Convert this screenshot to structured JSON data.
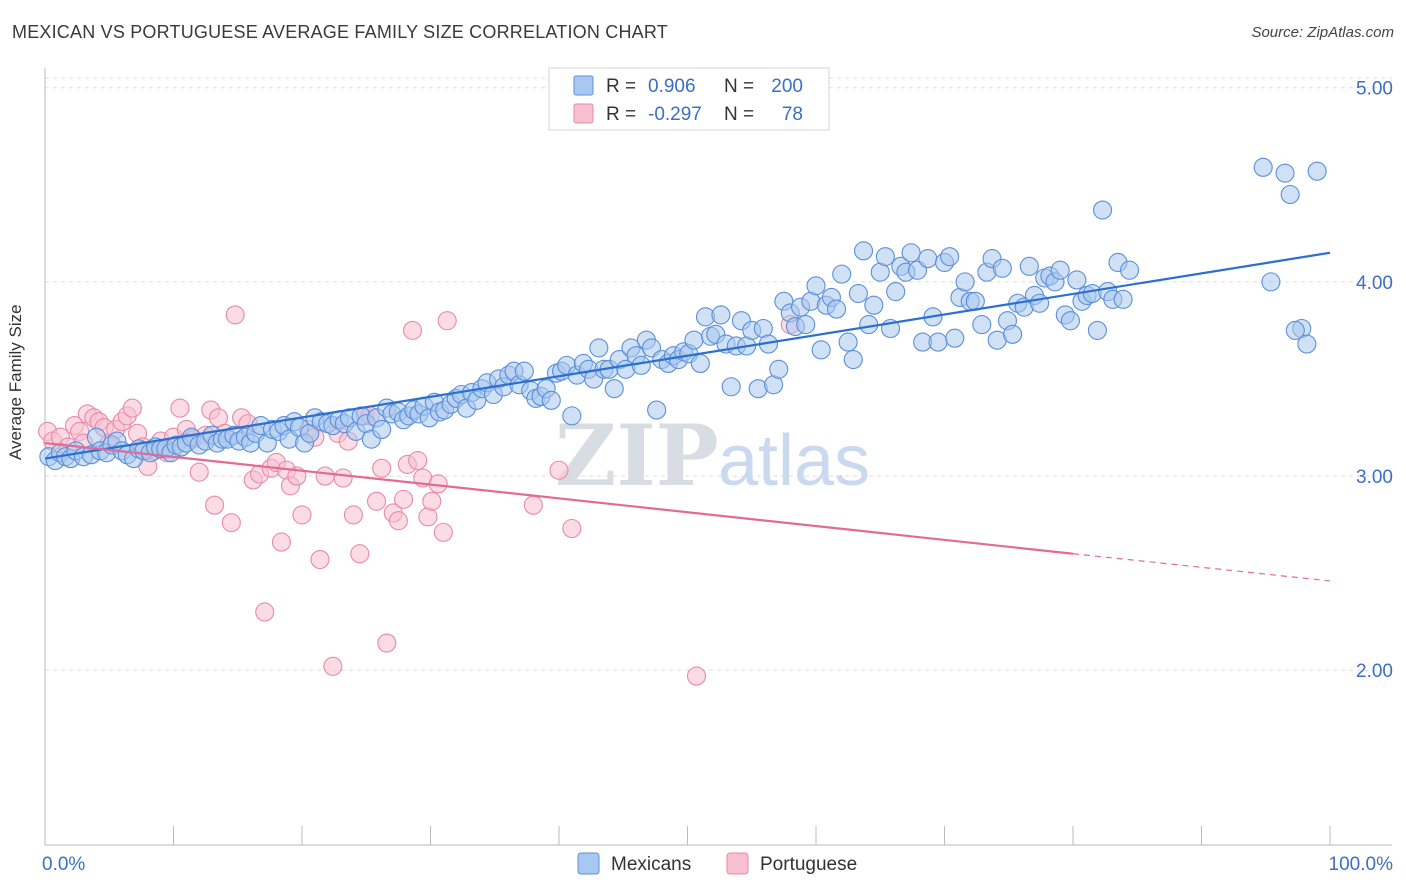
{
  "title": "MEXICAN VS PORTUGUESE AVERAGE FAMILY SIZE CORRELATION CHART",
  "source": "Source: ZipAtlas.com",
  "watermark": {
    "zip": "ZIP",
    "atlas": "atlas"
  },
  "chart_data": {
    "type": "scatter",
    "title": "MEXICAN VS PORTUGUESE AVERAGE FAMILY SIZE CORRELATION CHART",
    "xlabel": "",
    "ylabel": "Average Family Size",
    "xlim": [
      0,
      100
    ],
    "ylim": [
      1.1,
      5.05
    ],
    "x_tick_labels": {
      "left": "0.0%",
      "right": "100.0%"
    },
    "y_ticks": [
      2.0,
      3.0,
      4.0,
      5.0
    ],
    "y_tick_labels": [
      "2.00",
      "3.00",
      "4.00",
      "5.00"
    ],
    "legend_top": [
      {
        "series": "Mexicans",
        "r_label": "R =",
        "r_value": "0.906",
        "n_label": "N =",
        "n_value": "200"
      },
      {
        "series": "Portuguese",
        "r_label": "R =",
        "r_value": "-0.297",
        "n_label": "N =",
        "n_value": "78"
      }
    ],
    "series": [
      {
        "name": "Mexicans",
        "color": "#5b8fd9",
        "fill": "#a9c8ef",
        "trend": {
          "x1": 0,
          "y1": 3.09,
          "x2": 100,
          "y2": 4.15,
          "color": "#2b6fd1"
        },
        "points": [
          [
            0.3,
            3.1
          ],
          [
            0.8,
            3.08
          ],
          [
            1.2,
            3.12
          ],
          [
            1.6,
            3.1
          ],
          [
            2.0,
            3.09
          ],
          [
            2.4,
            3.13
          ],
          [
            3.0,
            3.1
          ],
          [
            3.6,
            3.11
          ],
          [
            4.0,
            3.2
          ],
          [
            4.3,
            3.13
          ],
          [
            4.8,
            3.12
          ],
          [
            5.2,
            3.16
          ],
          [
            5.6,
            3.18
          ],
          [
            6.0,
            3.13
          ],
          [
            6.4,
            3.11
          ],
          [
            6.9,
            3.09
          ],
          [
            7.3,
            3.14
          ],
          [
            7.7,
            3.13
          ],
          [
            8.2,
            3.12
          ],
          [
            8.6,
            3.15
          ],
          [
            9.0,
            3.14
          ],
          [
            9.4,
            3.14
          ],
          [
            9.8,
            3.12
          ],
          [
            10.2,
            3.16
          ],
          [
            10.6,
            3.15
          ],
          [
            11.0,
            3.17
          ],
          [
            11.4,
            3.2
          ],
          [
            12.0,
            3.16
          ],
          [
            12.5,
            3.18
          ],
          [
            13.0,
            3.21
          ],
          [
            13.4,
            3.17
          ],
          [
            13.8,
            3.19
          ],
          [
            14.2,
            3.19
          ],
          [
            14.7,
            3.21
          ],
          [
            15.1,
            3.18
          ],
          [
            15.6,
            3.2
          ],
          [
            16.0,
            3.17
          ],
          [
            16.4,
            3.22
          ],
          [
            16.8,
            3.26
          ],
          [
            17.3,
            3.17
          ],
          [
            17.7,
            3.24
          ],
          [
            18.2,
            3.23
          ],
          [
            18.6,
            3.26
          ],
          [
            19.0,
            3.19
          ],
          [
            19.4,
            3.28
          ],
          [
            19.8,
            3.25
          ],
          [
            20.2,
            3.17
          ],
          [
            20.6,
            3.22
          ],
          [
            21.0,
            3.3
          ],
          [
            21.5,
            3.28
          ],
          [
            22.0,
            3.27
          ],
          [
            22.4,
            3.26
          ],
          [
            22.9,
            3.29
          ],
          [
            23.3,
            3.27
          ],
          [
            23.7,
            3.3
          ],
          [
            24.2,
            3.23
          ],
          [
            24.6,
            3.31
          ],
          [
            25.0,
            3.27
          ],
          [
            25.4,
            3.19
          ],
          [
            25.8,
            3.3
          ],
          [
            26.2,
            3.24
          ],
          [
            26.6,
            3.35
          ],
          [
            27.0,
            3.32
          ],
          [
            27.5,
            3.33
          ],
          [
            27.9,
            3.29
          ],
          [
            28.3,
            3.31
          ],
          [
            28.7,
            3.34
          ],
          [
            29.1,
            3.32
          ],
          [
            29.5,
            3.36
          ],
          [
            29.9,
            3.3
          ],
          [
            30.3,
            3.38
          ],
          [
            30.7,
            3.33
          ],
          [
            31.1,
            3.34
          ],
          [
            31.6,
            3.37
          ],
          [
            32.0,
            3.4
          ],
          [
            32.4,
            3.42
          ],
          [
            32.8,
            3.35
          ],
          [
            33.2,
            3.43
          ],
          [
            33.6,
            3.39
          ],
          [
            34.0,
            3.45
          ],
          [
            34.4,
            3.48
          ],
          [
            34.9,
            3.42
          ],
          [
            35.3,
            3.5
          ],
          [
            35.7,
            3.46
          ],
          [
            36.1,
            3.52
          ],
          [
            36.5,
            3.54
          ],
          [
            36.9,
            3.47
          ],
          [
            37.3,
            3.54
          ],
          [
            37.8,
            3.44
          ],
          [
            38.2,
            3.4
          ],
          [
            38.6,
            3.41
          ],
          [
            39.0,
            3.45
          ],
          [
            39.4,
            3.39
          ],
          [
            39.8,
            3.53
          ],
          [
            40.2,
            3.54
          ],
          [
            40.6,
            3.57
          ],
          [
            41.0,
            3.31
          ],
          [
            41.4,
            3.52
          ],
          [
            41.9,
            3.58
          ],
          [
            42.3,
            3.55
          ],
          [
            42.7,
            3.5
          ],
          [
            43.1,
            3.66
          ],
          [
            43.5,
            3.55
          ],
          [
            43.9,
            3.55
          ],
          [
            44.3,
            3.45
          ],
          [
            44.7,
            3.6
          ],
          [
            45.2,
            3.55
          ],
          [
            45.6,
            3.66
          ],
          [
            46.0,
            3.62
          ],
          [
            46.4,
            3.57
          ],
          [
            46.8,
            3.7
          ],
          [
            47.2,
            3.66
          ],
          [
            47.6,
            3.34
          ],
          [
            48.0,
            3.6
          ],
          [
            48.5,
            3.58
          ],
          [
            48.9,
            3.62
          ],
          [
            49.3,
            3.6
          ],
          [
            49.7,
            3.64
          ],
          [
            50.1,
            3.63
          ],
          [
            50.5,
            3.7
          ],
          [
            51.0,
            3.58
          ],
          [
            51.4,
            3.82
          ],
          [
            51.8,
            3.72
          ],
          [
            52.2,
            3.73
          ],
          [
            52.6,
            3.83
          ],
          [
            53.0,
            3.68
          ],
          [
            53.4,
            3.46
          ],
          [
            53.8,
            3.67
          ],
          [
            54.2,
            3.8
          ],
          [
            54.6,
            3.67
          ],
          [
            55.0,
            3.75
          ],
          [
            55.5,
            3.45
          ],
          [
            55.9,
            3.76
          ],
          [
            56.3,
            3.68
          ],
          [
            56.7,
            3.47
          ],
          [
            57.1,
            3.55
          ],
          [
            57.5,
            3.9
          ],
          [
            58.0,
            3.84
          ],
          [
            58.4,
            3.77
          ],
          [
            58.8,
            3.87
          ],
          [
            59.2,
            3.78
          ],
          [
            59.6,
            3.9
          ],
          [
            60.0,
            3.98
          ],
          [
            60.4,
            3.65
          ],
          [
            60.8,
            3.88
          ],
          [
            61.2,
            3.92
          ],
          [
            61.6,
            3.86
          ],
          [
            62.0,
            4.04
          ],
          [
            62.5,
            3.69
          ],
          [
            62.9,
            3.6
          ],
          [
            63.3,
            3.94
          ],
          [
            63.7,
            4.16
          ],
          [
            64.1,
            3.78
          ],
          [
            64.5,
            3.88
          ],
          [
            65.0,
            4.05
          ],
          [
            65.4,
            4.13
          ],
          [
            65.8,
            3.76
          ],
          [
            66.2,
            3.95
          ],
          [
            66.6,
            4.08
          ],
          [
            67.0,
            4.05
          ],
          [
            67.4,
            4.15
          ],
          [
            67.9,
            4.06
          ],
          [
            68.3,
            3.69
          ],
          [
            68.7,
            4.12
          ],
          [
            69.1,
            3.82
          ],
          [
            69.5,
            3.69
          ],
          [
            70.0,
            4.1
          ],
          [
            70.4,
            4.13
          ],
          [
            70.8,
            3.71
          ],
          [
            71.2,
            3.92
          ],
          [
            71.6,
            4.0
          ],
          [
            72.0,
            3.9
          ],
          [
            72.4,
            3.9
          ],
          [
            72.9,
            3.78
          ],
          [
            73.3,
            4.05
          ],
          [
            73.7,
            4.12
          ],
          [
            74.1,
            3.7
          ],
          [
            74.5,
            4.07
          ],
          [
            74.9,
            3.8
          ],
          [
            75.3,
            3.73
          ],
          [
            75.7,
            3.89
          ],
          [
            76.2,
            3.87
          ],
          [
            76.6,
            4.08
          ],
          [
            77.0,
            3.93
          ],
          [
            77.4,
            3.89
          ],
          [
            77.8,
            4.02
          ],
          [
            78.2,
            4.03
          ],
          [
            78.6,
            4.0
          ],
          [
            79.0,
            4.06
          ],
          [
            79.4,
            3.83
          ],
          [
            79.8,
            3.8
          ],
          [
            80.3,
            4.01
          ],
          [
            80.7,
            3.9
          ],
          [
            81.1,
            3.93
          ],
          [
            81.5,
            3.94
          ],
          [
            81.9,
            3.75
          ],
          [
            82.3,
            4.37
          ],
          [
            82.7,
            3.95
          ],
          [
            83.1,
            3.91
          ],
          [
            83.5,
            4.1
          ],
          [
            83.9,
            3.91
          ],
          [
            84.4,
            4.06
          ],
          [
            94.8,
            4.59
          ],
          [
            96.5,
            4.56
          ],
          [
            96.9,
            4.45
          ],
          [
            97.8,
            3.76
          ],
          [
            98.2,
            3.68
          ],
          [
            99.0,
            4.57
          ],
          [
            97.3,
            3.75
          ],
          [
            95.4,
            4.0
          ]
        ]
      },
      {
        "name": "Portuguese",
        "color": "#e88aa8",
        "fill": "#f7bfd0",
        "trend": {
          "x1": 0,
          "y1": 3.17,
          "x2": 80,
          "y2": 2.6,
          "color": "#e26a93",
          "dashed_to_x": 100,
          "dashed_to_y": 2.46
        },
        "points": [
          [
            0.2,
            3.23
          ],
          [
            0.6,
            3.18
          ],
          [
            1.2,
            3.2
          ],
          [
            1.8,
            3.15
          ],
          [
            2.3,
            3.26
          ],
          [
            2.7,
            3.23
          ],
          [
            3.0,
            3.17
          ],
          [
            3.3,
            3.32
          ],
          [
            3.8,
            3.3
          ],
          [
            4.2,
            3.28
          ],
          [
            4.6,
            3.25
          ],
          [
            5.0,
            3.17
          ],
          [
            5.5,
            3.24
          ],
          [
            6.0,
            3.28
          ],
          [
            6.4,
            3.31
          ],
          [
            6.8,
            3.35
          ],
          [
            7.2,
            3.22
          ],
          [
            7.6,
            3.15
          ],
          [
            8.0,
            3.05
          ],
          [
            8.5,
            3.13
          ],
          [
            9.0,
            3.18
          ],
          [
            9.5,
            3.12
          ],
          [
            10.0,
            3.2
          ],
          [
            10.5,
            3.35
          ],
          [
            11.0,
            3.24
          ],
          [
            11.5,
            3.19
          ],
          [
            12.0,
            3.02
          ],
          [
            12.5,
            3.21
          ],
          [
            12.9,
            3.34
          ],
          [
            13.2,
            2.85
          ],
          [
            13.5,
            3.3
          ],
          [
            14.0,
            3.22
          ],
          [
            14.5,
            2.76
          ],
          [
            14.8,
            3.83
          ],
          [
            15.3,
            3.3
          ],
          [
            15.8,
            3.27
          ],
          [
            16.2,
            2.98
          ],
          [
            16.7,
            3.01
          ],
          [
            17.1,
            2.3
          ],
          [
            17.6,
            3.04
          ],
          [
            18.0,
            3.07
          ],
          [
            18.4,
            2.66
          ],
          [
            18.8,
            3.03
          ],
          [
            19.1,
            2.95
          ],
          [
            19.6,
            3.0
          ],
          [
            20.0,
            2.8
          ],
          [
            20.5,
            3.24
          ],
          [
            21.0,
            3.2
          ],
          [
            21.4,
            2.57
          ],
          [
            21.8,
            3.0
          ],
          [
            22.4,
            2.02
          ],
          [
            22.8,
            3.22
          ],
          [
            23.2,
            2.99
          ],
          [
            23.6,
            3.18
          ],
          [
            24.0,
            2.8
          ],
          [
            24.5,
            2.6
          ],
          [
            24.9,
            3.31
          ],
          [
            25.3,
            3.31
          ],
          [
            25.8,
            2.87
          ],
          [
            26.2,
            3.04
          ],
          [
            26.6,
            2.14
          ],
          [
            27.1,
            2.81
          ],
          [
            27.5,
            2.77
          ],
          [
            27.9,
            2.88
          ],
          [
            28.2,
            3.06
          ],
          [
            28.6,
            3.75
          ],
          [
            29.0,
            3.08
          ],
          [
            29.4,
            2.99
          ],
          [
            29.8,
            2.79
          ],
          [
            30.1,
            2.87
          ],
          [
            30.6,
            2.96
          ],
          [
            31.0,
            2.71
          ],
          [
            31.3,
            3.8
          ],
          [
            38.0,
            2.85
          ],
          [
            40.0,
            3.03
          ],
          [
            41.0,
            2.73
          ],
          [
            50.7,
            1.97
          ],
          [
            58.0,
            3.78
          ]
        ]
      }
    ]
  },
  "legend_bottom": [
    {
      "label": "Mexicans",
      "color": "#a9c8ef"
    },
    {
      "label": "Portuguese",
      "color": "#f7bfd0"
    }
  ]
}
